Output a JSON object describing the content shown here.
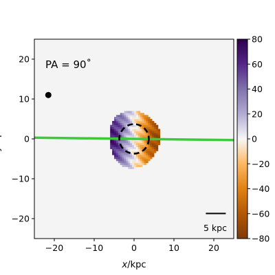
{
  "chart_data": {
    "type": "heatmap",
    "title": "",
    "xlabel": "x/kpc",
    "ylabel": "y/kpc",
    "xlim": [
      -25,
      25
    ],
    "ylim": [
      -25,
      25
    ],
    "xticks": [
      "−20",
      "−10",
      "0",
      "10",
      "20"
    ],
    "xtick_values": [
      -20,
      -10,
      0,
      10,
      20
    ],
    "yticks": [
      "−20",
      "−10",
      "0",
      "10",
      "20"
    ],
    "ytick_values": [
      -20,
      -10,
      0,
      10,
      20
    ],
    "annotation": "PA = 90˚",
    "scalebar_label": "5 kpc",
    "scalebar_x": [
      18,
      23
    ],
    "scalebar_y": -18.7,
    "marker_point": [
      -21.5,
      11
    ],
    "fit_line": {
      "x": [
        -25,
        25
      ],
      "y": [
        0.3,
        -0.3
      ],
      "color": "#3cc93c"
    },
    "dashed_circle": {
      "center": [
        0,
        0
      ],
      "radius": 3.7
    },
    "colorbar": {
      "min": -80,
      "max": 80,
      "ticks": [
        -80,
        -60,
        -40,
        -20,
        0,
        20,
        40,
        60,
        80
      ],
      "tick_labels": [
        "−80",
        "−60",
        "−40",
        "−20",
        "0",
        "20",
        "40",
        "60",
        "80"
      ],
      "colormap": "PuOr"
    },
    "field": {
      "description": "velocity field in kpc grid; value = vmax * (-x/r) * shape",
      "center": [
        0,
        0
      ],
      "extent_x": [
        -6.5,
        6.5
      ],
      "extent_y": [
        -7.5,
        7.5
      ],
      "vmax": 70
    },
    "background_color": "#f4f4f4"
  }
}
